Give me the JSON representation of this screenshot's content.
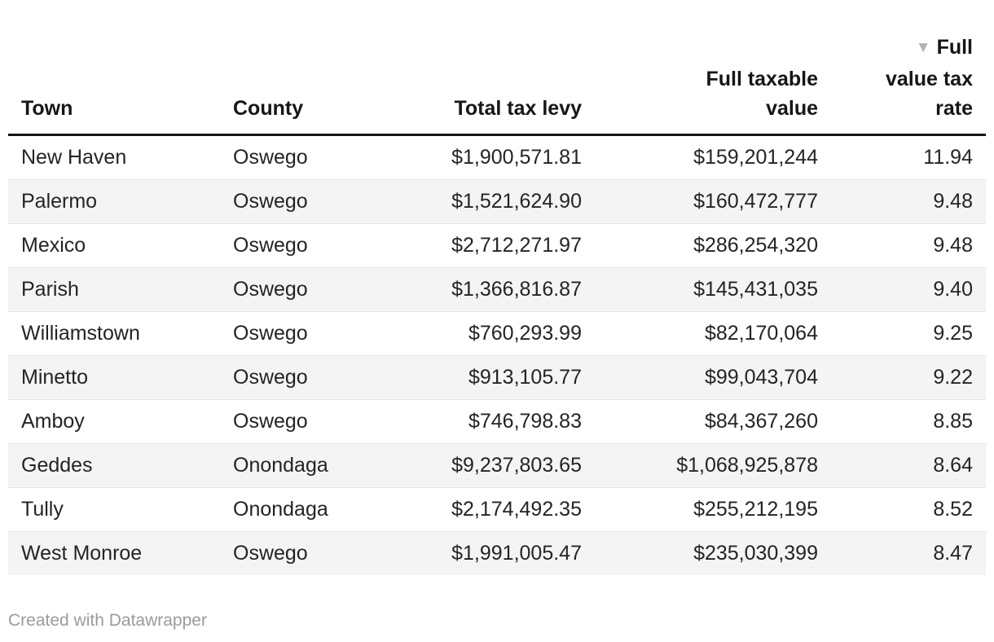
{
  "chart_data": {
    "type": "table",
    "columns": [
      {
        "label": "Town",
        "align": "left"
      },
      {
        "label": "County",
        "align": "left"
      },
      {
        "label": "Total tax levy",
        "align": "right"
      },
      {
        "label": "Full taxable value",
        "align": "right",
        "lines": [
          "Full taxable",
          "value"
        ]
      },
      {
        "label": "Full value tax rate",
        "align": "right",
        "lines": [
          "Full",
          "value tax",
          "rate"
        ],
        "sorted": "descending"
      }
    ],
    "rows": [
      {
        "town": "New Haven",
        "county": "Oswego",
        "levy": "$1,900,571.81",
        "value": "$159,201,244",
        "rate": "11.94"
      },
      {
        "town": "Palermo",
        "county": "Oswego",
        "levy": "$1,521,624.90",
        "value": "$160,472,777",
        "rate": "9.48"
      },
      {
        "town": "Mexico",
        "county": "Oswego",
        "levy": "$2,712,271.97",
        "value": "$286,254,320",
        "rate": "9.48"
      },
      {
        "town": "Parish",
        "county": "Oswego",
        "levy": "$1,366,816.87",
        "value": "$145,431,035",
        "rate": "9.40"
      },
      {
        "town": "Williamstown",
        "county": "Oswego",
        "levy": "$760,293.99",
        "value": "$82,170,064",
        "rate": "9.25"
      },
      {
        "town": "Minetto",
        "county": "Oswego",
        "levy": "$913,105.77",
        "value": "$99,043,704",
        "rate": "9.22"
      },
      {
        "town": "Amboy",
        "county": "Oswego",
        "levy": "$746,798.83",
        "value": "$84,367,260",
        "rate": "8.85"
      },
      {
        "town": "Geddes",
        "county": "Onondaga",
        "levy": "$9,237,803.65",
        "value": "$1,068,925,878",
        "rate": "8.64"
      },
      {
        "town": "Tully",
        "county": "Onondaga",
        "levy": "$2,174,492.35",
        "value": "$255,212,195",
        "rate": "8.52"
      },
      {
        "town": "West Monroe",
        "county": "Oswego",
        "levy": "$1,991,005.47",
        "value": "$235,030,399",
        "rate": "8.47"
      }
    ]
  },
  "header": {
    "sort_icon": "▼"
  },
  "footer": {
    "credit": "Created with Datawrapper"
  },
  "colors": {
    "header_text": "#161616",
    "body_text": "#242424",
    "header_rule": "#161616",
    "row_divider": "#e3e3e3",
    "stripe": "#f4f4f4",
    "sort_arrow": "#b3b3b3",
    "credit_text": "#9b9b9b",
    "background": "#ffffff"
  }
}
